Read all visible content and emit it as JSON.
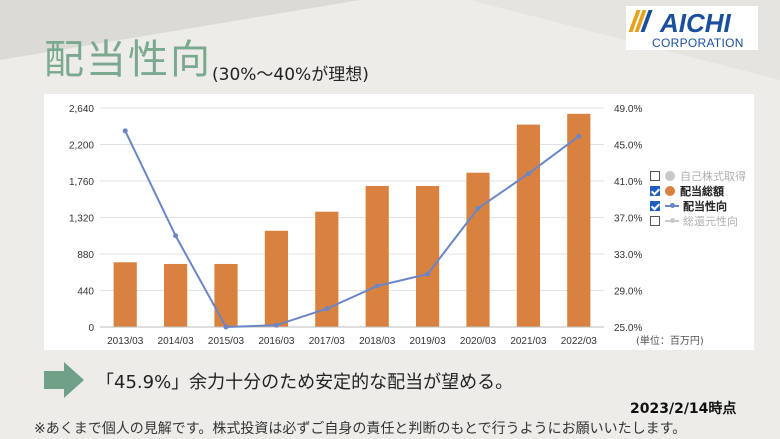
{
  "slide": {
    "title": "配当性向",
    "subtitle": "(30%〜40%が理想)",
    "logo_text": "AICHI",
    "logo_sub": "CORPORATION",
    "message": "「45.9%」余力十分のため安定的な配当が望める。",
    "date": "2023/2/14時点",
    "note": "※あくまで個人の見解です。株式投資は必ずご自身の責任と判断のもとで行うようにお願いいたします。",
    "colors": {
      "title": "#7aa98f",
      "arrow": "#6fa088",
      "logo_blue": "#1a4f9c"
    }
  },
  "legend": [
    {
      "label": "自己株式取得",
      "checked": false,
      "symbol": "dot",
      "color": "#c8c8c8"
    },
    {
      "label": "配当総額",
      "checked": true,
      "symbol": "dot",
      "color": "#d9823f"
    },
    {
      "label": "配当性向",
      "checked": true,
      "symbol": "line",
      "color": "#6a86c6"
    },
    {
      "label": "総還元性向",
      "checked": false,
      "symbol": "line",
      "color": "#c8c8c8"
    }
  ],
  "chart_data": {
    "type": "bar",
    "categories": [
      "2013/03",
      "2014/03",
      "2015/03",
      "2016/03",
      "2017/03",
      "2018/03",
      "2019/03",
      "2020/03",
      "2021/03",
      "2022/03"
    ],
    "series": [
      {
        "name": "配当総額",
        "type": "bar",
        "axis": "left",
        "color": "#d9823f",
        "values": [
          780,
          760,
          760,
          1160,
          1390,
          1700,
          1700,
          1860,
          2440,
          2570
        ]
      },
      {
        "name": "配当性向",
        "type": "line",
        "axis": "right",
        "color": "#6a86c6",
        "values": [
          46.5,
          35.0,
          25.0,
          25.2,
          27.0,
          29.5,
          30.8,
          38.0,
          41.8,
          45.9
        ]
      }
    ],
    "y_left": {
      "ylim": [
        0,
        2640
      ],
      "ticks": [
        "0",
        "440",
        "880",
        "1,320",
        "1,760",
        "2,200",
        "2,640"
      ]
    },
    "y_right": {
      "ylim": [
        25.0,
        49.0
      ],
      "ticks": [
        "25.0%",
        "29.0%",
        "33.0%",
        "37.0%",
        "41.0%",
        "45.0%",
        "49.0%"
      ]
    },
    "unit_label": "(単位：百万円)",
    "grid": true
  }
}
